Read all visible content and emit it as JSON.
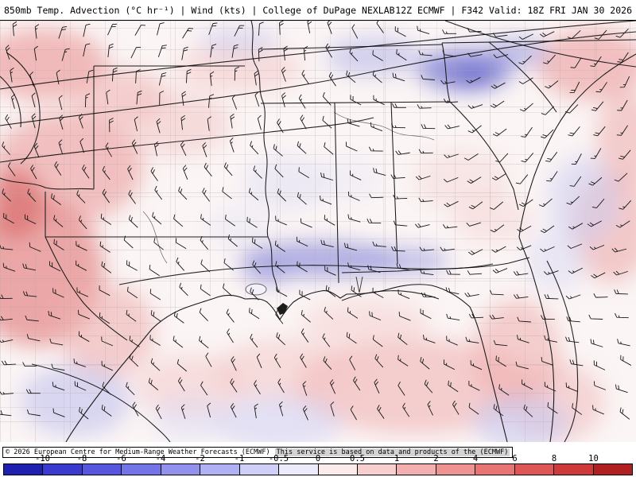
{
  "header": {
    "left": "850mb Temp. Advection (°C hr⁻¹) | Wind (kts) | College of DuPage NEXLAB",
    "right": "12Z ECMWF | F342 Valid: 18Z FRI JAN 30 2026"
  },
  "footer": {
    "copyright": "© 2026 European Centre for Medium-Range Weather Forecasts (ECMWF)",
    "service": "This service is based on data and products of the (ECMWF)"
  },
  "colorbar": {
    "units": "°C hr⁻¹",
    "ticks": [
      "-10",
      "-8",
      "-6",
      "-4",
      "-2",
      "-1",
      "-0.5",
      "0",
      "0.5",
      "1",
      "2",
      "4",
      "6",
      "8",
      "10"
    ],
    "colors": [
      "#2020b0",
      "#3a3ace",
      "#5656de",
      "#7474e8",
      "#9292ee",
      "#b0b0f4",
      "#cfcff8",
      "#ebebfc",
      "#fcebeb",
      "#f8cfcf",
      "#f4b0b0",
      "#ee9292",
      "#e87474",
      "#de5656",
      "#ce3a3a",
      "#b02020"
    ]
  }
}
